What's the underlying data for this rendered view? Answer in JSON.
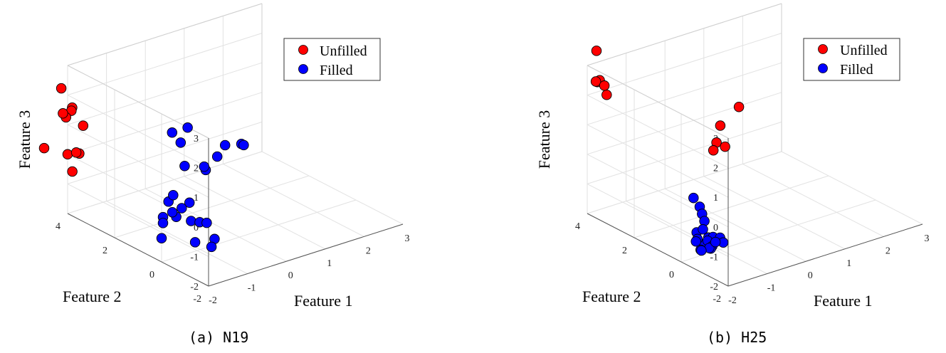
{
  "colors": {
    "unfilled": "#ff0000",
    "filled": "#0000ff",
    "marker_edge": "#000000",
    "grid": "#e2e2e2"
  },
  "panels": [
    {
      "caption": "(a) N19"
    },
    {
      "caption": "(b) H25"
    }
  ],
  "chart_data": [
    {
      "type": "scatter",
      "subtitle": "(a) N19",
      "xlabel": "Feature 1",
      "ylabel": "Feature 2",
      "zlabel": "Feature 3",
      "xlim": [
        -2,
        3
      ],
      "ylim": [
        -2,
        4
      ],
      "zlim": [
        -2,
        3
      ],
      "xticks": [
        "-2",
        "-1",
        "0",
        "1",
        "2",
        "3"
      ],
      "yticks": [
        "-2",
        "0",
        "2",
        "4"
      ],
      "zticks": [
        "-2",
        "-1",
        "0",
        "1",
        "2",
        "3"
      ],
      "grid": true,
      "legend": "top-right",
      "series": [
        {
          "name": "Unfilled",
          "color": "#ff0000",
          "points": [
            [
              -2.0,
              4.2,
              1.3
            ],
            [
              -1.8,
              4.6,
              1.9
            ],
            [
              -1.8,
              4.4,
              1.0
            ],
            [
              -1.6,
              4.5,
              1.1
            ],
            [
              -1.4,
              4.8,
              1.0
            ],
            [
              -1.6,
              4.0,
              0.8
            ],
            [
              -1.9,
              3.8,
              0.1
            ],
            [
              -1.7,
              4.0,
              -0.1
            ],
            [
              -2.0,
              4.0,
              0.0
            ],
            [
              -2.0,
              3.8,
              -0.5
            ],
            [
              -2.0,
              5.0,
              -0.2
            ]
          ]
        },
        {
          "name": "Filled",
          "color": "#0000ff",
          "points": [
            [
              -0.4,
              2.2,
              0.8
            ],
            [
              0.0,
              2.2,
              0.8
            ],
            [
              -0.3,
              2.0,
              0.5
            ],
            [
              -0.5,
              1.5,
              0.0
            ],
            [
              -0.3,
              1.0,
              0.1
            ],
            [
              -0.2,
              1.1,
              -0.1
            ],
            [
              0.6,
              1.6,
              0.2
            ],
            [
              0.9,
              1.4,
              0.2
            ],
            [
              0.9,
              1.3,
              0.2
            ],
            [
              0.4,
              1.6,
              -0.1
            ],
            [
              -1.4,
              0.5,
              -0.2
            ],
            [
              -1.4,
              0.7,
              -0.5
            ],
            [
              -1.3,
              0.3,
              -0.6
            ],
            [
              -1.1,
              0.3,
              -0.5
            ],
            [
              -1.3,
              0.7,
              -0.9
            ],
            [
              -1.6,
              0.6,
              -0.9
            ],
            [
              -1.6,
              0.6,
              -1.1
            ],
            [
              -1.2,
              0.7,
              -1.1
            ],
            [
              -1.0,
              0.4,
              -1.2
            ],
            [
              -0.9,
              0.2,
              -1.2
            ],
            [
              -0.9,
              -0.1,
              -1.1
            ],
            [
              -1.5,
              -0.6,
              -1.3
            ],
            [
              -1.0,
              -0.6,
              -1.4
            ],
            [
              -1.2,
              -0.8,
              -1.5
            ],
            [
              -2.0,
              0.0,
              -1.2
            ]
          ]
        }
      ]
    },
    {
      "type": "scatter",
      "subtitle": "(b) H25",
      "xlabel": "Feature 1",
      "ylabel": "Feature 2",
      "zlabel": "Feature 3",
      "xlim": [
        -2,
        3
      ],
      "ylim": [
        -2,
        4
      ],
      "zlim": [
        -2,
        3
      ],
      "xticks": [
        "-2",
        "-1",
        "0",
        "1",
        "2",
        "3"
      ],
      "yticks": [
        "-2",
        "0",
        "2",
        "4"
      ],
      "zticks": [
        "-2",
        "-1",
        "0",
        "1",
        "2",
        "3"
      ],
      "grid": true,
      "legend": "top-right",
      "series": [
        {
          "name": "Unfilled",
          "color": "#ff0000",
          "points": [
            [
              -1.4,
              4.6,
              3.0
            ],
            [
              -1.9,
              3.8,
              2.5
            ],
            [
              -1.8,
              3.8,
              2.5
            ],
            [
              -1.8,
              3.9,
              2.4
            ],
            [
              -1.8,
              3.6,
              2.4
            ],
            [
              -1.5,
              4.0,
              1.8
            ],
            [
              0.4,
              2.6,
              -0.3
            ],
            [
              0.7,
              2.6,
              -0.3
            ],
            [
              0.6,
              2.8,
              -0.2
            ],
            [
              1.0,
              3.3,
              0.0
            ],
            [
              1.6,
              3.5,
              0.3
            ]
          ]
        },
        {
          "name": "Filled",
          "color": "#0000ff",
          "points": [
            [
              -1.2,
              0.8,
              -0.5
            ],
            [
              -1.1,
              0.7,
              -0.8
            ],
            [
              -1.1,
              0.6,
              -1.0
            ],
            [
              -1.1,
              0.5,
              -1.2
            ],
            [
              -1.2,
              0.4,
              -1.4
            ],
            [
              -1.3,
              0.5,
              -1.5
            ],
            [
              -1.4,
              0.3,
              -1.6
            ],
            [
              -1.2,
              0.2,
              -1.7
            ],
            [
              -1.0,
              0.3,
              -1.7
            ],
            [
              -1.5,
              0.0,
              -1.8
            ],
            [
              -1.3,
              -0.1,
              -1.8
            ],
            [
              -1.2,
              0.0,
              -1.8
            ],
            [
              -1.0,
              0.0,
              -1.6
            ],
            [
              -1.4,
              -0.2,
              -1.7
            ],
            [
              -1.6,
              -0.2,
              -1.7
            ],
            [
              -1.1,
              -0.3,
              -1.6
            ],
            [
              -1.3,
              -0.3,
              -1.5
            ],
            [
              -1.5,
              0.2,
              -1.6
            ],
            [
              -1.2,
              0.4,
              -1.9
            ],
            [
              -1.0,
              0.5,
              -1.8
            ]
          ]
        }
      ]
    }
  ]
}
